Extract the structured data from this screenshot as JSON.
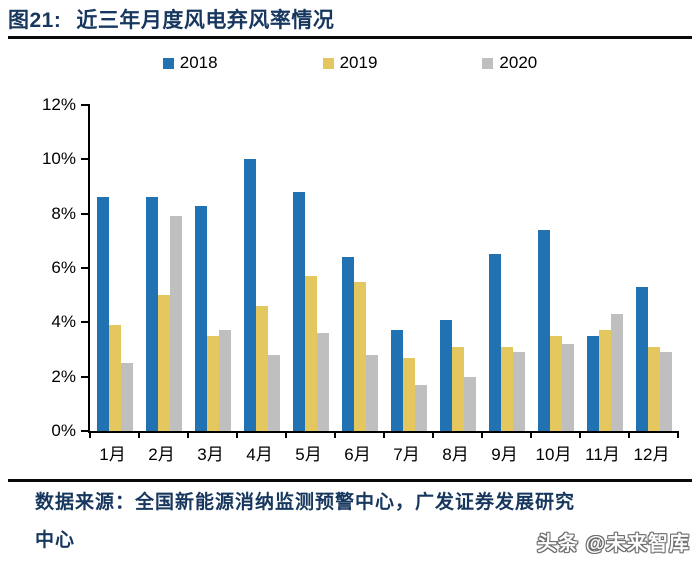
{
  "figure": {
    "label": "图21:",
    "title": "近三年月度风电弃风率情况"
  },
  "chart_data": {
    "type": "bar",
    "title": "近三年月度风电弃风率情况",
    "xlabel": "",
    "ylabel": "",
    "categories": [
      "1月",
      "2月",
      "3月",
      "4月",
      "5月",
      "6月",
      "7月",
      "8月",
      "9月",
      "10月",
      "11月",
      "12月"
    ],
    "series": [
      {
        "name": "2018",
        "color": "#2072B2",
        "values": [
          8.6,
          8.6,
          8.3,
          10.0,
          8.8,
          6.4,
          3.7,
          4.1,
          6.5,
          7.4,
          3.5,
          5.3
        ]
      },
      {
        "name": "2019",
        "color": "#E5C75F",
        "values": [
          3.9,
          5.0,
          3.5,
          4.6,
          5.7,
          5.5,
          2.7,
          3.1,
          3.1,
          3.5,
          3.7,
          3.1
        ]
      },
      {
        "name": "2020",
        "color": "#BFBFBF",
        "values": [
          2.5,
          7.9,
          3.7,
          2.8,
          3.6,
          2.8,
          1.7,
          2.0,
          2.9,
          3.2,
          4.3,
          2.9
        ]
      }
    ],
    "ylim": [
      0,
      12
    ],
    "y_ticks": [
      "0%",
      "2%",
      "4%",
      "6%",
      "8%",
      "10%",
      "12%"
    ],
    "grid": false,
    "legend_position": "top"
  },
  "footer": {
    "source_line1": "数据来源：全国新能源消纳监测预警中心，广发证券发展研究",
    "source_line2": "中心",
    "watermark": "头条 @未来智库"
  },
  "colors": {
    "title": "#17375E",
    "axis": "#000000",
    "rule": "#0a0a0a"
  }
}
